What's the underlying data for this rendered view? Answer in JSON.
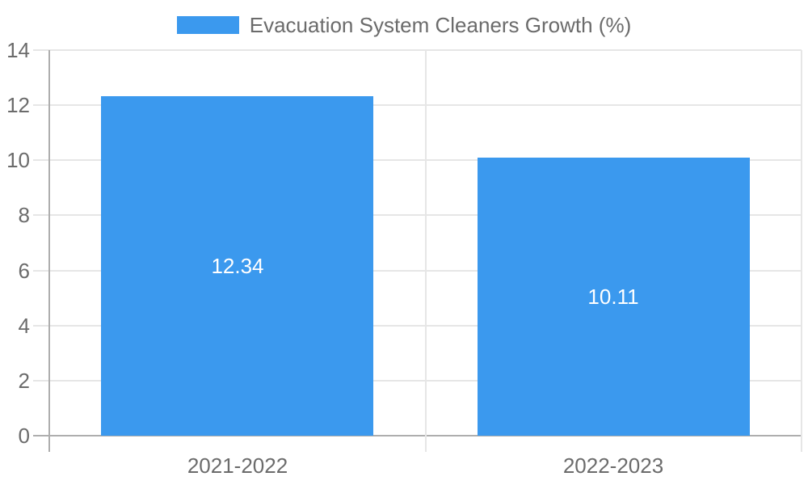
{
  "chart_data": {
    "type": "bar",
    "title": "",
    "legend": {
      "position": "top",
      "label": "Evacuation System Cleaners Growth (%)"
    },
    "categories": [
      "2021-2022",
      "2022-2023"
    ],
    "series": [
      {
        "name": "Evacuation System Cleaners Growth (%)",
        "values": [
          12.34,
          10.11
        ]
      }
    ],
    "value_labels": [
      "12.34",
      "10.11"
    ],
    "xlabel": "",
    "ylabel": "",
    "ylim": [
      0,
      14
    ],
    "yticks": [
      0,
      2,
      4,
      6,
      8,
      10,
      12,
      14
    ],
    "grid": true,
    "colors": {
      "bar": "#3b99ee",
      "value_label": "#ffffff",
      "tick_label": "#6b6b6b",
      "gridline": "#e6e6e6",
      "axis_line": "#aeaeae",
      "background": "#ffffff"
    }
  }
}
